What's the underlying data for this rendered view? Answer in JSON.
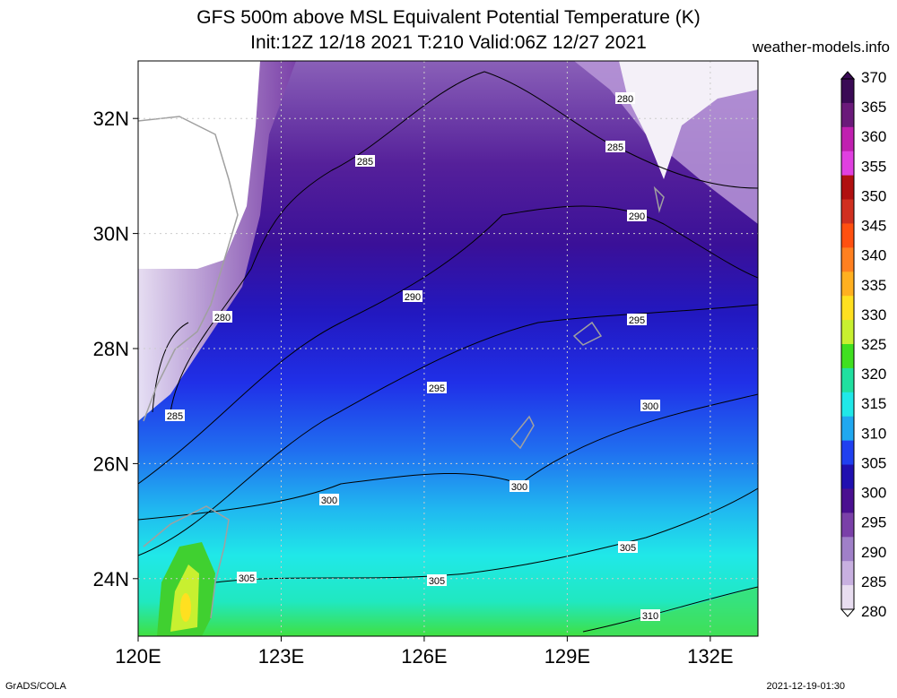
{
  "title_line1": "GFS 500m above MSL Equivalent Potential Temperature (K)",
  "title_line2": "Init:12Z 12/18 2021 T:210 Valid:06Z 12/27 2021",
  "site": "weather-models.info",
  "credit": "GrADS/COLA",
  "timestamp": "2021-12-19-01:30",
  "map": {
    "lon_range": [
      120,
      133
    ],
    "lat_range": [
      23,
      33
    ],
    "lon_ticks": [
      120,
      123,
      126,
      129,
      132
    ],
    "lon_tick_labels": [
      "120E",
      "123E",
      "126E",
      "129E",
      "132E"
    ],
    "lat_ticks": [
      24,
      26,
      28,
      30,
      32
    ],
    "lat_tick_labels": [
      "24N",
      "26N",
      "28N",
      "30N",
      "32N"
    ],
    "contour_labels": [
      "280",
      "280",
      "285",
      "285",
      "285",
      "290",
      "290",
      "295",
      "295",
      "300",
      "300",
      "300",
      "305",
      "305",
      "305",
      "310"
    ]
  },
  "colorbar": {
    "labels": [
      "370",
      "365",
      "360",
      "355",
      "350",
      "345",
      "340",
      "335",
      "330",
      "325",
      "320",
      "315",
      "310",
      "305",
      "300",
      "295",
      "290",
      "285",
      "280"
    ],
    "colors": [
      "#3a0a55",
      "#6a1a7a",
      "#c020b0",
      "#e040e0",
      "#b01010",
      "#d03020",
      "#ff5010",
      "#ff8020",
      "#ffb020",
      "#ffe020",
      "#c8f030",
      "#40e020",
      "#20e0a0",
      "#20e8e8",
      "#20a8f0",
      "#2040f0",
      "#2010b0",
      "#4a1090",
      "#7a40a8",
      "#a080c8",
      "#c8b0e0",
      "#e8ddf0"
    ]
  }
}
